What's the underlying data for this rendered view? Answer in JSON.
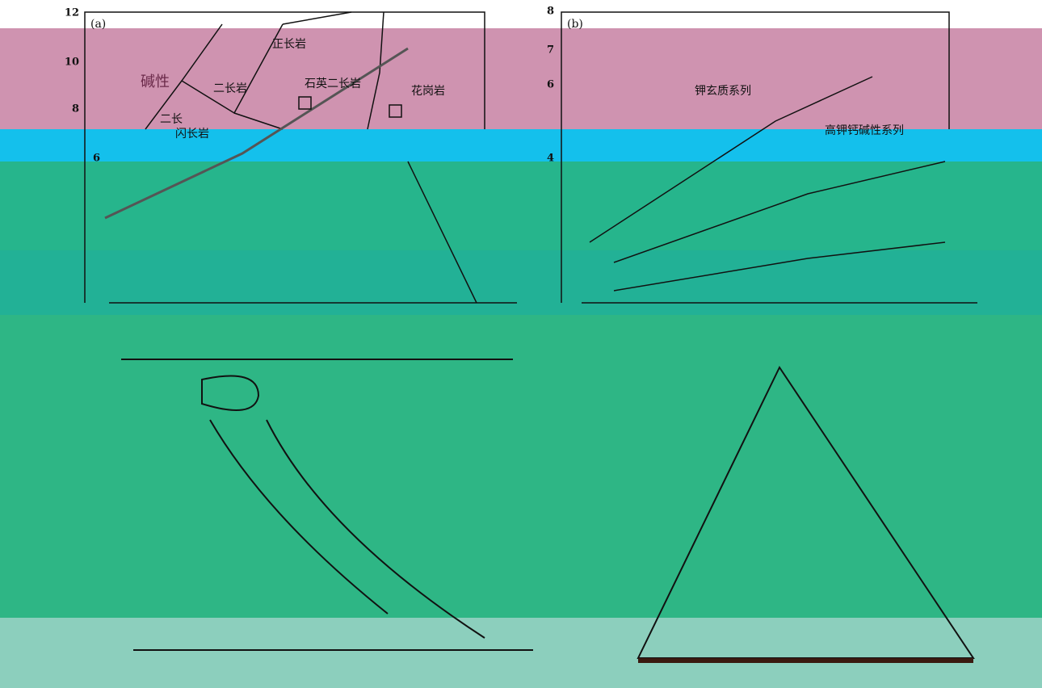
{
  "panels": [
    {
      "label": "(a)",
      "yticks": [
        "12",
        "10",
        "8",
        "6"
      ],
      "fields": [
        "正长岩",
        "碱性",
        "二长岩",
        "石英二长岩",
        "花岗岩",
        "二长",
        "闪长岩"
      ]
    },
    {
      "label": "(b)",
      "yticks": [
        "8",
        "7",
        "6",
        "4"
      ],
      "fields": [
        "钾玄质系列",
        "高钾钙碱性系列"
      ]
    }
  ]
}
